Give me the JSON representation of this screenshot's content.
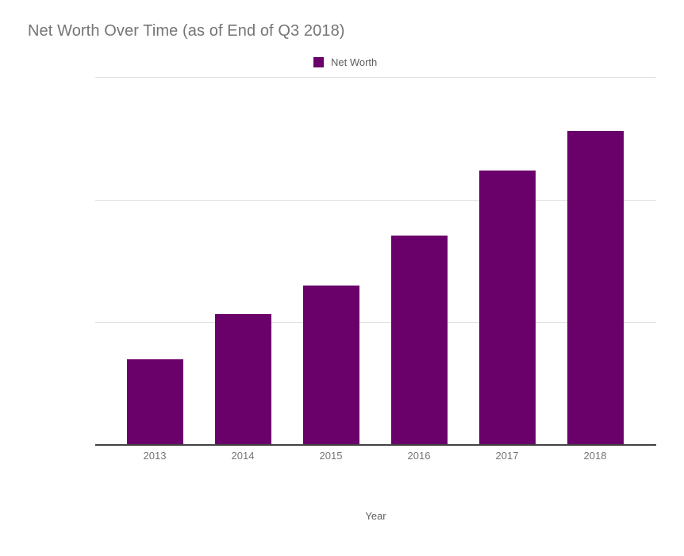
{
  "title": "Net Worth Over Time (as of End of Q3 2018)",
  "legend": {
    "label": "Net Worth",
    "position": "top-center"
  },
  "axis": {
    "x_title": "Year"
  },
  "colors": {
    "background": "#ffffff",
    "bar": "#6a006a",
    "title_text": "#757575",
    "tick_text": "#757575",
    "axis_title_text": "#616161",
    "legend_text": "#5e5e5e",
    "gridline": "#e0e0e0",
    "baseline": "#424242"
  },
  "chart_data": {
    "type": "bar",
    "title": "Net Worth Over Time (as of End of Q3 2018)",
    "categories": [
      "2013",
      "2014",
      "2015",
      "2016",
      "2017",
      "2018"
    ],
    "series": [
      {
        "name": "Net Worth",
        "values": [
          0.7,
          1.07,
          1.3,
          1.71,
          2.24,
          2.56
        ]
      }
    ],
    "xlabel": "Year",
    "ylabel": "",
    "ylim": [
      0,
      3
    ],
    "y_tick_labels": [],
    "gridline_values": [
      1,
      2,
      3
    ],
    "grid": true,
    "legend_position": "top-center",
    "value_units": "gridline-intervals (y axis shown without numeric labels)"
  }
}
